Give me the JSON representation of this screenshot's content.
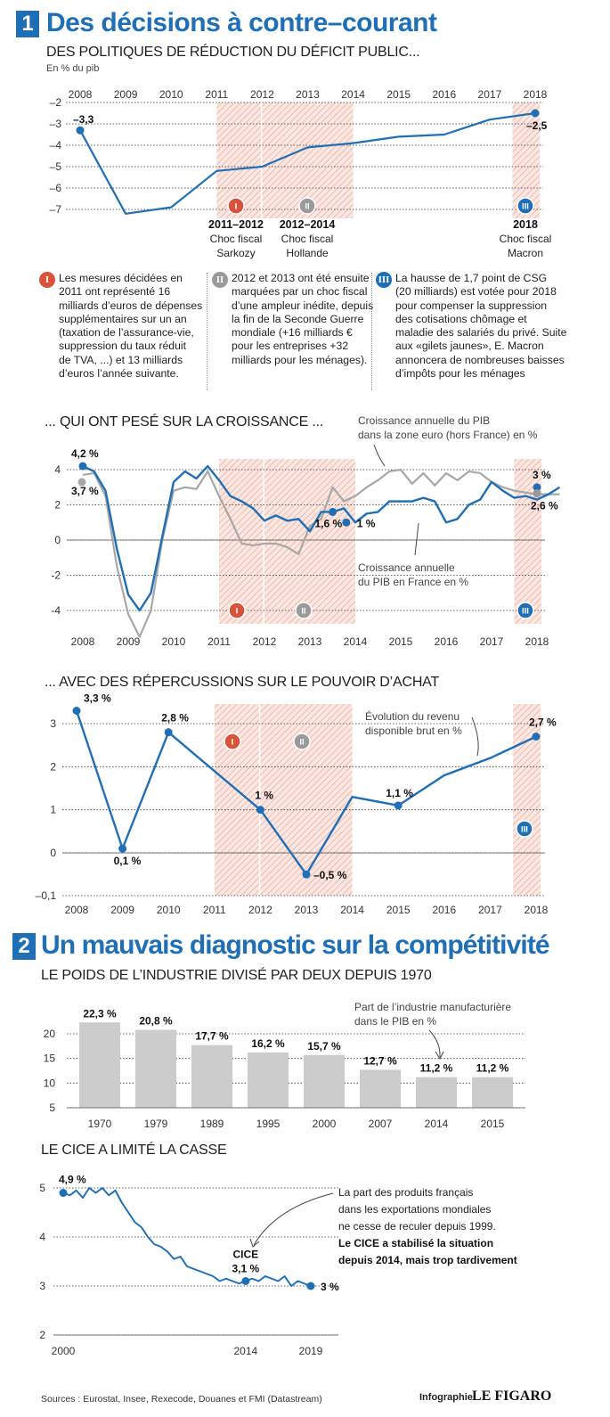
{
  "section1": {
    "number": "1",
    "title": "Des décisions à contre–courant",
    "subtitle": "DES POLITIQUES DE RÉDUCTION DU DÉFICIT PUBLIC...",
    "unit": "En % du pib"
  },
  "chart_deficit": {
    "type": "line",
    "x_ticks": [
      "2008",
      "2009",
      "2010",
      "2011",
      "2012",
      "2013",
      "2014",
      "2015",
      "2016",
      "2017",
      "2018"
    ],
    "y_ticks": [
      "–2",
      "–3",
      "–4",
      "–5",
      "–6",
      "–7"
    ],
    "ylim": [
      -7,
      -2
    ],
    "series": [
      {
        "values": [
          [
            2008,
            -3.3
          ],
          [
            2009,
            -7.2
          ],
          [
            2010,
            -6.9
          ],
          [
            2011,
            -5.2
          ],
          [
            2012,
            -5.0
          ],
          [
            2013,
            -4.1
          ],
          [
            2014,
            -3.9
          ],
          [
            2015,
            -3.6
          ],
          [
            2016,
            -3.5
          ],
          [
            2017,
            -2.8
          ],
          [
            2018,
            -2.5
          ]
        ]
      }
    ],
    "labels": {
      "start": "–3,3",
      "end": "–2,5"
    },
    "shocks": [
      {
        "marker": "I",
        "color": "#d9533b",
        "year": "2011–2012",
        "line1": "Choc fiscal",
        "line2": "Sarkozy"
      },
      {
        "marker": "II",
        "color": "#9a9a9a",
        "year": "2012–2014",
        "line1": "Choc fiscal",
        "line2": "Hollande"
      },
      {
        "marker": "III",
        "color": "#1f6fb7",
        "year": "2018",
        "line1": "Choc fiscal",
        "line2": "Macron"
      }
    ],
    "shaded_periods": [
      [
        2011,
        2012
      ],
      [
        2012,
        2014
      ],
      [
        2017.5,
        2018.1
      ]
    ]
  },
  "notes": [
    {
      "marker": "I",
      "color": "#d9533b",
      "lines": [
        "Les mesures décidées en",
        "2011 ont représenté 16",
        "milliards d’euros de dépenses",
        "supplémentaires sur un an",
        "(taxation de l’assurance-vie,",
        "suppression du taux réduit",
        "de TVA, ...) et  13 milliards",
        "d’euros l’année suivante."
      ]
    },
    {
      "marker": "II",
      "color": "#9a9a9a",
      "lines": [
        "2012 et 2013 ont été ensuite",
        "marquées par un choc fiscal",
        "d’une ampleur inédite, depuis",
        "la fin de la Seconde Guerre",
        "mondiale (+16 milliards €",
        "pour les entreprises +32",
        "milliards pour les ménages)."
      ]
    },
    {
      "marker": "III",
      "color": "#1f6fb7",
      "lines": [
        "La hausse de 1,7 point de CSG",
        "(20 milliards) est votée pour 2018",
        "pour compenser la suppression",
        "des cotisations chômage et",
        "maladie des salariés du privé. Suite",
        "aux «gilets jaunes», E. Macron",
        "annoncera de nombreuses baisses",
        "d’impôts pour les ménages"
      ]
    }
  ],
  "section_growth": {
    "subtitle": "... QUI ONT PESÉ SUR LA CROISSANCE ..."
  },
  "chart_growth": {
    "type": "line",
    "x_ticks": [
      "2008",
      "2009",
      "2010",
      "2011",
      "2012",
      "2013",
      "2014",
      "2015",
      "2016",
      "2017",
      "2018"
    ],
    "y_ticks": [
      "4",
      "2",
      "0",
      "-2",
      "-4"
    ],
    "ylim": [
      -5.5,
      4.5
    ],
    "series": [
      {
        "name": "Croissance annuelle du PIB en France en %",
        "color": "#1f6fb7",
        "values": [
          [
            2008,
            4.2
          ],
          [
            2008.25,
            3.9
          ],
          [
            2008.5,
            2.8
          ],
          [
            2008.75,
            -0.5
          ],
          [
            2009,
            -3.1
          ],
          [
            2009.25,
            -4.0
          ],
          [
            2009.5,
            -3.0
          ],
          [
            2009.75,
            0.2
          ],
          [
            2010,
            3.3
          ],
          [
            2010.25,
            3.9
          ],
          [
            2010.5,
            3.5
          ],
          [
            2010.75,
            4.2
          ],
          [
            2011,
            3.4
          ],
          [
            2011.25,
            2.5
          ],
          [
            2011.5,
            2.2
          ],
          [
            2011.75,
            1.8
          ],
          [
            2012,
            1.1
          ],
          [
            2012.25,
            1.4
          ],
          [
            2012.5,
            1.1
          ],
          [
            2012.75,
            1.2
          ],
          [
            2013,
            0.5
          ],
          [
            2013.25,
            1.6
          ],
          [
            2013.5,
            1.6
          ],
          [
            2013.75,
            1.8
          ],
          [
            2014,
            1.0
          ],
          [
            2014.25,
            1.5
          ],
          [
            2014.5,
            1.6
          ],
          [
            2014.75,
            2.2
          ],
          [
            2015,
            2.2
          ],
          [
            2015.25,
            2.2
          ],
          [
            2015.5,
            2.4
          ],
          [
            2015.75,
            2.2
          ],
          [
            2016,
            1.0
          ],
          [
            2016.25,
            1.2
          ],
          [
            2016.5,
            2.0
          ],
          [
            2016.75,
            2.3
          ],
          [
            2017,
            3.3
          ],
          [
            2017.25,
            2.8
          ],
          [
            2017.5,
            2.4
          ],
          [
            2017.75,
            2.5
          ],
          [
            2018,
            2.3
          ],
          [
            2018.25,
            2.6
          ],
          [
            2018.5,
            3.0
          ]
        ]
      },
      {
        "name": "Croissance annuelle du PIB dans la zone euro (hors France) en %",
        "color": "#a7a7a7",
        "values": [
          [
            2008,
            3.7
          ],
          [
            2008.25,
            3.8
          ],
          [
            2008.5,
            2.5
          ],
          [
            2008.75,
            -1.5
          ],
          [
            2009,
            -4.2
          ],
          [
            2009.25,
            -5.5
          ],
          [
            2009.5,
            -4.0
          ],
          [
            2009.75,
            0.0
          ],
          [
            2010,
            2.8
          ],
          [
            2010.25,
            3.0
          ],
          [
            2010.5,
            2.9
          ],
          [
            2010.75,
            3.9
          ],
          [
            2011,
            2.5
          ],
          [
            2011.25,
            1.2
          ],
          [
            2011.5,
            -0.2
          ],
          [
            2011.75,
            -0.3
          ],
          [
            2012,
            -0.2
          ],
          [
            2012.25,
            -0.2
          ],
          [
            2012.5,
            -0.4
          ],
          [
            2012.75,
            -0.8
          ],
          [
            2013,
            0.8
          ],
          [
            2013.25,
            1.2
          ],
          [
            2013.5,
            3.0
          ],
          [
            2013.75,
            2.2
          ],
          [
            2014,
            2.5
          ],
          [
            2014.25,
            3.0
          ],
          [
            2014.5,
            3.4
          ],
          [
            2014.75,
            3.9
          ],
          [
            2015,
            4.0
          ],
          [
            2015.25,
            3.2
          ],
          [
            2015.5,
            3.8
          ],
          [
            2015.75,
            3.1
          ],
          [
            2016,
            3.8
          ],
          [
            2016.25,
            3.4
          ],
          [
            2016.5,
            3.9
          ],
          [
            2016.75,
            3.8
          ],
          [
            2017,
            3.3
          ],
          [
            2017.25,
            3.0
          ],
          [
            2017.5,
            2.8
          ],
          [
            2017.75,
            2.7
          ],
          [
            2018,
            2.6
          ],
          [
            2018.25,
            2.6
          ],
          [
            2018.5,
            2.6
          ]
        ]
      }
    ],
    "labels": {
      "fr_start": "4,2 %",
      "ez_start": "3,7 %",
      "a": "1,6 %",
      "b": "1 %",
      "fr_end": "3 %",
      "ez_end": "2,6 %"
    },
    "annotations": {
      "ez": [
        "Croissance annuelle du PIB",
        "dans la zone euro (hors France) en %"
      ],
      "fr": [
        "Croissance annuelle",
        "du PIB en France en %"
      ]
    },
    "markers": [
      "I",
      "II",
      "III"
    ]
  },
  "section_purchasing": {
    "subtitle": "... AVEC DES RÉPERCUSSIONS SUR LE POUVOIR D’ACHAT"
  },
  "chart_income": {
    "type": "line",
    "x_ticks": [
      "2008",
      "2009",
      "2010",
      "2011",
      "2012",
      "2013",
      "2014",
      "2015",
      "2016",
      "2017",
      "2018"
    ],
    "y_ticks": [
      "3",
      "2",
      "1",
      "0",
      "–0,1"
    ],
    "ylim": [
      -1,
      3.5
    ],
    "series": [
      {
        "name": "Évolution du revenu disponible brut en %",
        "color": "#1f6fb7",
        "values": [
          [
            2008,
            3.3
          ],
          [
            2009,
            0.1
          ],
          [
            2010,
            2.8
          ],
          [
            2012,
            1.0
          ],
          [
            2013,
            -0.5
          ],
          [
            2014,
            1.3
          ],
          [
            2015,
            1.1
          ],
          [
            2016,
            1.8
          ],
          [
            2017,
            2.2
          ],
          [
            2018,
            2.7
          ]
        ]
      }
    ],
    "point_labels": [
      "3,3 %",
      "0,1 %",
      "2,8 %",
      "1 %",
      "–0,5 %",
      "1,1 %",
      "2,7 %"
    ],
    "annotation": [
      "Évolution du revenu",
      "disponible brut en %"
    ],
    "markers": [
      "I",
      "II",
      "III"
    ]
  },
  "section2": {
    "number": "2",
    "title": "Un mauvais diagnostic sur la compétitivité",
    "subtitle": "LE POIDS DE L’INDUSTRIE DIVISÉ PAR DEUX DEPUIS 1970"
  },
  "chart_industry": {
    "type": "bar",
    "categories": [
      "1970",
      "1979",
      "1989",
      "1995",
      "2000",
      "2007",
      "2014",
      "2015"
    ],
    "values": [
      22.3,
      20.8,
      17.7,
      16.2,
      15.7,
      12.7,
      11.2,
      11.2
    ],
    "value_labels": [
      "22,3 %",
      "20,8 %",
      "17,7 %",
      "16,2 %",
      "15,7 %",
      "12,7 %",
      "11,2 %",
      "11,2 %"
    ],
    "y_ticks": [
      "20",
      "15",
      "10",
      "5"
    ],
    "ylim": [
      5,
      23
    ],
    "annotation": [
      "Part de l’industrie manufacturière",
      "dans le PIB en %"
    ]
  },
  "section_cice": {
    "subtitle": "LE CICE A LIMITÉ LA CASSE"
  },
  "chart_cice": {
    "type": "line",
    "x_ticks": [
      "2000",
      "2014",
      "2019"
    ],
    "y_ticks": [
      "5",
      "4",
      "3",
      "2"
    ],
    "ylim": [
      2,
      5
    ],
    "series": [
      {
        "color": "#1f6fb7",
        "values": [
          [
            2000,
            4.9
          ],
          [
            2000.5,
            4.85
          ],
          [
            2001,
            4.95
          ],
          [
            2001.5,
            4.8
          ],
          [
            2002,
            5.0
          ],
          [
            2002.5,
            4.9
          ],
          [
            2003,
            5.0
          ],
          [
            2003.5,
            4.85
          ],
          [
            2004,
            4.95
          ],
          [
            2004.5,
            4.7
          ],
          [
            2005,
            4.5
          ],
          [
            2005.5,
            4.3
          ],
          [
            2006,
            4.2
          ],
          [
            2006.5,
            4.0
          ],
          [
            2007,
            3.85
          ],
          [
            2007.5,
            3.8
          ],
          [
            2008,
            3.7
          ],
          [
            2008.5,
            3.55
          ],
          [
            2009,
            3.6
          ],
          [
            2009.5,
            3.4
          ],
          [
            2010,
            3.35
          ],
          [
            2010.5,
            3.3
          ],
          [
            2011,
            3.25
          ],
          [
            2011.5,
            3.2
          ],
          [
            2012,
            3.1
          ],
          [
            2012.5,
            3.15
          ],
          [
            2013,
            3.1
          ],
          [
            2013.5,
            3.05
          ],
          [
            2014,
            3.1
          ],
          [
            2014.5,
            3.15
          ],
          [
            2015,
            3.1
          ],
          [
            2015.5,
            3.2
          ],
          [
            2016,
            3.15
          ],
          [
            2016.5,
            3.1
          ],
          [
            2017,
            3.2
          ],
          [
            2017.5,
            3.0
          ],
          [
            2018,
            3.1
          ],
          [
            2018.5,
            3.05
          ],
          [
            2019,
            3.0
          ]
        ]
      }
    ],
    "labels": {
      "start": "4,9 %",
      "cice": "CICE",
      "mid": "3,1 %",
      "end": "3 %"
    },
    "annotation": [
      "La part des produits français",
      "dans les exportations mondiales",
      "ne cesse de reculer depuis 1999."
    ],
    "annotation_bold": [
      "Le CICE a stabilisé la situation",
      "depuis 2014, mais trop tardivement"
    ]
  },
  "footer": {
    "sources": "Sources : Eurostat, Insee, Rexecode, Douanes  et FMI (Datastream)",
    "credit_prefix": "Infographie",
    "credit_brand": "LE FIGARO"
  },
  "colors": {
    "accent": "#1f6fb7",
    "shade": "#f3d6cf",
    "marker_red": "#d9533b",
    "marker_grey": "#9a9a9a",
    "grey_series": "#a7a7a7",
    "bar": "#cccccc"
  }
}
